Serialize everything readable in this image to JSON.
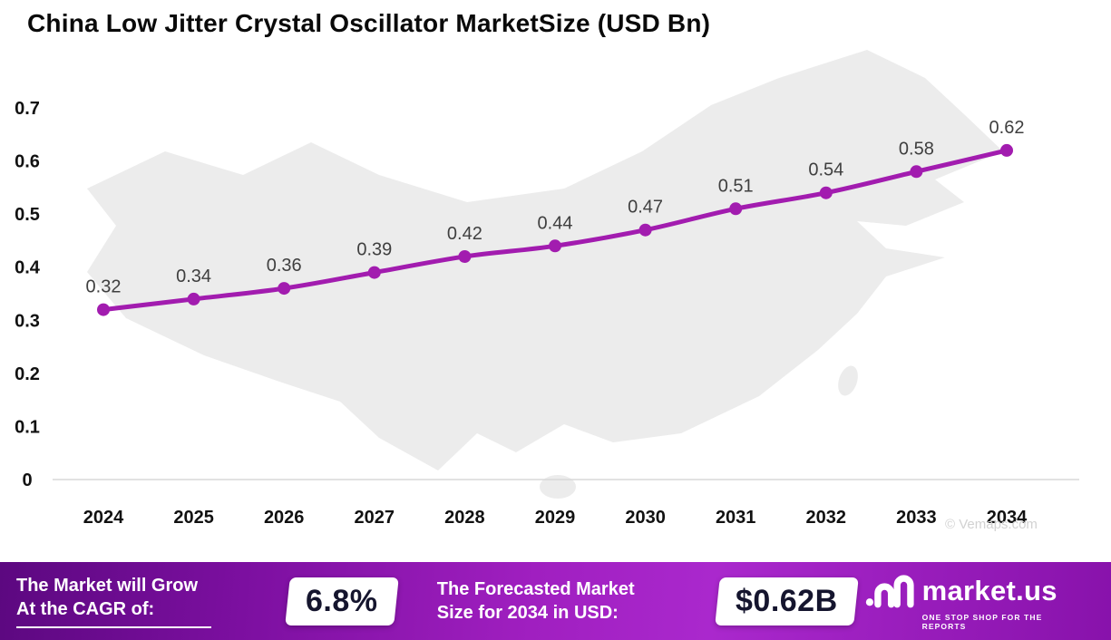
{
  "title": "China Low Jitter Crystal Oscillator MarketSize (USD Bn)",
  "watermark": "© Vemaps.com",
  "chart_data": {
    "type": "line",
    "title": "China Low Jitter Crystal Oscillator MarketSize (USD Bn)",
    "categories": [
      "2024",
      "2025",
      "2026",
      "2027",
      "2028",
      "2029",
      "2030",
      "2031",
      "2032",
      "2033",
      "2034"
    ],
    "values": [
      0.32,
      0.34,
      0.36,
      0.39,
      0.42,
      0.44,
      0.47,
      0.51,
      0.54,
      0.58,
      0.62
    ],
    "ylim": [
      0,
      0.7
    ],
    "ytick_labels": [
      "0",
      "0.1",
      "0.2",
      "0.3",
      "0.4",
      "0.5",
      "0.6",
      "0.7"
    ],
    "xlabel": "",
    "ylabel": "",
    "grid": false,
    "legend": false,
    "line_color": "#A21CAF",
    "label_color": "#3f3f3f",
    "axis_color": "#111111",
    "background": "china-map-silhouette"
  },
  "footer": {
    "cagr_label_line1": "The Market will Grow",
    "cagr_label_line2": "At the CAGR of:",
    "cagr_value": "6.8%",
    "forecast_label_line1": "The Forecasted Market",
    "forecast_label_line2": "Size for 2034 in USD:",
    "forecast_value": "$0.62B",
    "brand_name": "market.us",
    "brand_tagline": "ONE STOP SHOP FOR THE REPORTS"
  }
}
